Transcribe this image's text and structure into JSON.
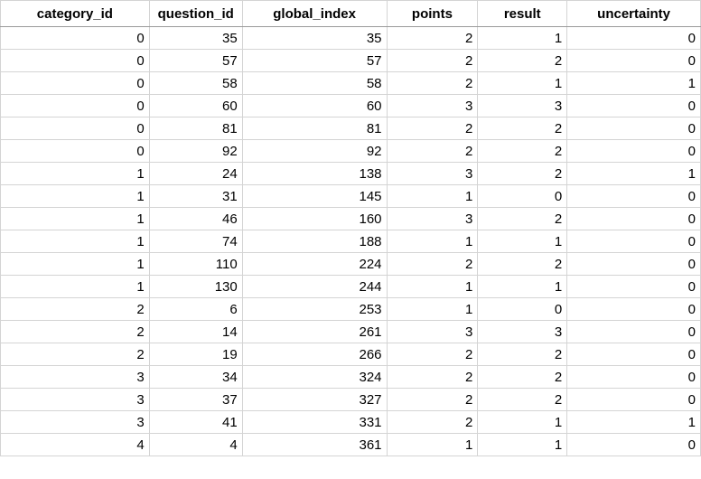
{
  "sheet": {
    "columns": [
      "category_id",
      "question_id",
      "global_index",
      "points",
      "result",
      "uncertainty"
    ],
    "rows": [
      [
        "0",
        "35",
        "35",
        "2",
        "1",
        "0"
      ],
      [
        "0",
        "57",
        "57",
        "2",
        "2",
        "0"
      ],
      [
        "0",
        "58",
        "58",
        "2",
        "1",
        "1"
      ],
      [
        "0",
        "60",
        "60",
        "3",
        "3",
        "0"
      ],
      [
        "0",
        "81",
        "81",
        "2",
        "2",
        "0"
      ],
      [
        "0",
        "92",
        "92",
        "2",
        "2",
        "0"
      ],
      [
        "1",
        "24",
        "138",
        "3",
        "2",
        "1"
      ],
      [
        "1",
        "31",
        "145",
        "1",
        "0",
        "0"
      ],
      [
        "1",
        "46",
        "160",
        "3",
        "2",
        "0"
      ],
      [
        "1",
        "74",
        "188",
        "1",
        "1",
        "0"
      ],
      [
        "1",
        "110",
        "224",
        "2",
        "2",
        "0"
      ],
      [
        "1",
        "130",
        "244",
        "1",
        "1",
        "0"
      ],
      [
        "2",
        "6",
        "253",
        "1",
        "0",
        "0"
      ],
      [
        "2",
        "14",
        "261",
        "3",
        "3",
        "0"
      ],
      [
        "2",
        "19",
        "266",
        "2",
        "2",
        "0"
      ],
      [
        "3",
        "34",
        "324",
        "2",
        "2",
        "0"
      ],
      [
        "3",
        "37",
        "327",
        "2",
        "2",
        "0"
      ],
      [
        "3",
        "41",
        "331",
        "2",
        "1",
        "1"
      ],
      [
        "4",
        "4",
        "361",
        "1",
        "1",
        "0"
      ]
    ]
  }
}
